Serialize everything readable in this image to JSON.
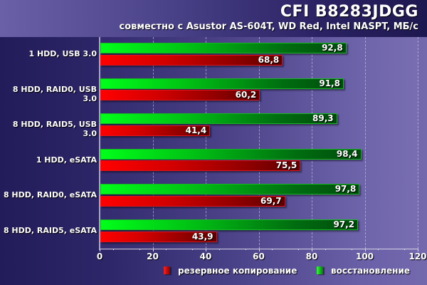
{
  "header": {
    "title": "CFI B8283JDGG",
    "subtitle": "совместно с Asustor AS-604T, WD Red, Intel NASPT, МБ/с"
  },
  "colors": {
    "backup": "#e00000",
    "restore": "#00d414",
    "background": "#2d2668"
  },
  "legend": {
    "backup_label": "резервное копирование",
    "restore_label": "восстановление"
  },
  "axis": {
    "ticks": [
      "0",
      "20",
      "40",
      "60",
      "80",
      "100",
      "120"
    ]
  },
  "rows": [
    {
      "label": "1 HDD, USB 3.0",
      "restore": "92,8",
      "backup": "68,8"
    },
    {
      "label": "8 HDD, RAID0, USB 3.0",
      "restore": "91,8",
      "backup": "60,2"
    },
    {
      "label": "8 HDD, RAID5, USB 3.0",
      "restore": "89,3",
      "backup": "41,4"
    },
    {
      "label": "1 HDD, eSATA",
      "restore": "98,4",
      "backup": "75,5"
    },
    {
      "label": "8 HDD, RAID0, eSATA",
      "restore": "97,8",
      "backup": "69,7"
    },
    {
      "label": "8 HDD, RAID5, eSATA",
      "restore": "97,2",
      "backup": "43,9"
    }
  ],
  "chart_data": {
    "type": "bar",
    "orientation": "horizontal",
    "title": "CFI B8283JDGG",
    "subtitle": "совместно с Asustor AS-604T, WD Red, Intel NASPT, МБ/с",
    "xlabel": "",
    "ylabel": "",
    "xlim": [
      0,
      120
    ],
    "xticks": [
      0,
      20,
      40,
      60,
      80,
      100,
      120
    ],
    "grid": true,
    "legend_position": "bottom-right",
    "categories": [
      "1 HDD, USB 3.0",
      "8 HDD, RAID0, USB 3.0",
      "8 HDD, RAID5, USB 3.0",
      "1 HDD, eSATA",
      "8 HDD, RAID0, eSATA",
      "8 HDD, RAID5, eSATA"
    ],
    "series": [
      {
        "name": "резервное копирование",
        "color": "#e00000",
        "values": [
          68.8,
          60.2,
          41.4,
          75.5,
          69.7,
          43.9
        ]
      },
      {
        "name": "восстановление",
        "color": "#00d414",
        "values": [
          92.8,
          91.8,
          89.3,
          98.4,
          97.8,
          97.2
        ]
      }
    ]
  }
}
